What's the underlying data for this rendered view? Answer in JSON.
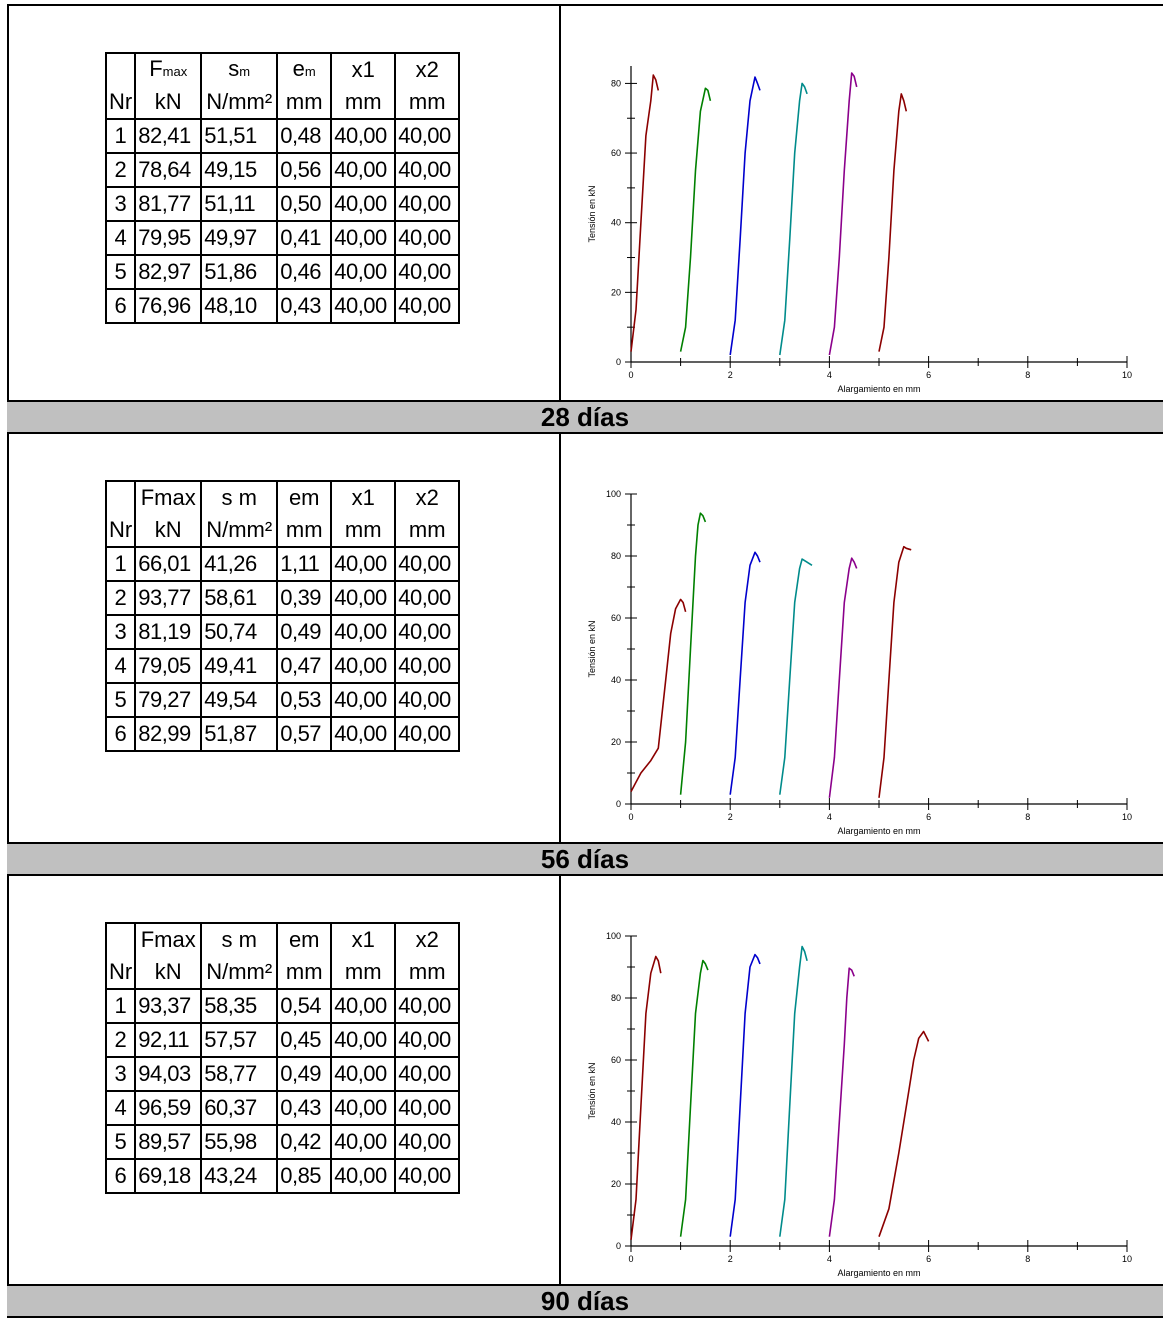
{
  "panels": [
    {
      "caption": "28 días",
      "table": {
        "header_top": [
          "",
          "F",
          "s",
          "e",
          "x1",
          "x2"
        ],
        "header_top_sub": [
          "",
          "max",
          "m",
          "m",
          "",
          ""
        ],
        "header_bottom": [
          "Nr",
          "kN",
          "N/mm²",
          "mm",
          "mm",
          "mm"
        ],
        "rows": [
          [
            "1",
            "82,41",
            "51,51",
            "0,48",
            "40,00",
            "40,00"
          ],
          [
            "2",
            "78,64",
            "49,15",
            "0,56",
            "40,00",
            "40,00"
          ],
          [
            "3",
            "81,77",
            "51,11",
            "0,50",
            "40,00",
            "40,00"
          ],
          [
            "4",
            "79,95",
            "49,97",
            "0,41",
            "40,00",
            "40,00"
          ],
          [
            "5",
            "82,97",
            "51,86",
            "0,46",
            "40,00",
            "40,00"
          ],
          [
            "6",
            "76,96",
            "48,10",
            "0,43",
            "40,00",
            "40,00"
          ]
        ]
      }
    },
    {
      "caption": "56 días",
      "table": {
        "header_top": [
          "",
          "Fmax",
          "s m",
          "em",
          "x1",
          "x2"
        ],
        "header_top_sub": [
          "",
          "",
          "",
          "",
          "",
          ""
        ],
        "header_bottom": [
          "Nr",
          "kN",
          "N/mm²",
          "mm",
          "mm",
          "mm"
        ],
        "rows": [
          [
            "1",
            "66,01",
            "41,26",
            "1,11",
            "40,00",
            "40,00"
          ],
          [
            "2",
            "93,77",
            "58,61",
            "0,39",
            "40,00",
            "40,00"
          ],
          [
            "3",
            "81,19",
            "50,74",
            "0,49",
            "40,00",
            "40,00"
          ],
          [
            "4",
            "79,05",
            "49,41",
            "0,47",
            "40,00",
            "40,00"
          ],
          [
            "5",
            "79,27",
            "49,54",
            "0,53",
            "40,00",
            "40,00"
          ],
          [
            "6",
            "82,99",
            "51,87",
            "0,57",
            "40,00",
            "40,00"
          ]
        ]
      }
    },
    {
      "caption": "90 días",
      "table": {
        "header_top": [
          "",
          "Fmax",
          "s m",
          "em",
          "x1",
          "x2"
        ],
        "header_top_sub": [
          "",
          "",
          "",
          "",
          "",
          ""
        ],
        "header_bottom": [
          "Nr",
          "kN",
          "N/mm²",
          "mm",
          "mm",
          "mm"
        ],
        "rows": [
          [
            "1",
            "93,37",
            "58,35",
            "0,54",
            "40,00",
            "40,00"
          ],
          [
            "2",
            "92,11",
            "57,57",
            "0,45",
            "40,00",
            "40,00"
          ],
          [
            "3",
            "94,03",
            "58,77",
            "0,49",
            "40,00",
            "40,00"
          ],
          [
            "4",
            "96,59",
            "60,37",
            "0,43",
            "40,00",
            "40,00"
          ],
          [
            "5",
            "89,57",
            "55,98",
            "0,42",
            "40,00",
            "40,00"
          ],
          [
            "6",
            "69,18",
            "43,24",
            "0,85",
            "40,00",
            "40,00"
          ]
        ]
      }
    }
  ],
  "chart_data": [
    {
      "type": "line",
      "title": "",
      "xlabel": "Alargamiento en mm",
      "ylabel": "Tensión en kN",
      "xlim": [
        0,
        10
      ],
      "ylim": [
        0,
        85
      ],
      "xticks": [
        0,
        2,
        4,
        6,
        8,
        10
      ],
      "yticks": [
        0,
        20,
        40,
        60,
        80
      ],
      "grid": false,
      "colors": [
        "#8b0000",
        "#008000",
        "#0000cd",
        "#008b8b",
        "#8b008b",
        "#8b0000"
      ],
      "series": [
        {
          "x": [
            0,
            0.1,
            0.2,
            0.3,
            0.4,
            0.45,
            0.5,
            0.55
          ],
          "y": [
            3,
            15,
            40,
            65,
            75,
            82.4,
            81,
            78
          ]
        },
        {
          "x": [
            1,
            1.1,
            1.2,
            1.3,
            1.4,
            1.5,
            1.55,
            1.6
          ],
          "y": [
            3,
            10,
            30,
            55,
            72,
            78.6,
            78,
            75
          ]
        },
        {
          "x": [
            2,
            2.1,
            2.2,
            2.3,
            2.4,
            2.5,
            2.55,
            2.6
          ],
          "y": [
            2,
            12,
            35,
            60,
            75,
            81.8,
            80,
            78
          ]
        },
        {
          "x": [
            3,
            3.1,
            3.2,
            3.3,
            3.4,
            3.45,
            3.5,
            3.55
          ],
          "y": [
            2,
            12,
            35,
            60,
            75,
            80,
            79,
            77
          ]
        },
        {
          "x": [
            4,
            4.1,
            4.2,
            4.3,
            4.4,
            4.45,
            4.5,
            4.55
          ],
          "y": [
            2,
            10,
            30,
            55,
            75,
            83,
            82,
            79
          ]
        },
        {
          "x": [
            5,
            5.1,
            5.2,
            5.3,
            5.4,
            5.45,
            5.5,
            5.55
          ],
          "y": [
            3,
            10,
            30,
            55,
            72,
            77,
            75,
            72
          ]
        }
      ]
    },
    {
      "type": "line",
      "title": "",
      "xlabel": "Alargamiento en mm",
      "ylabel": "Tensión en kN",
      "xlim": [
        0,
        10
      ],
      "ylim": [
        0,
        100
      ],
      "xticks": [
        0,
        2,
        4,
        6,
        8,
        10
      ],
      "yticks": [
        0,
        20,
        40,
        60,
        80,
        100
      ],
      "grid": false,
      "colors": [
        "#8b0000",
        "#008000",
        "#0000cd",
        "#008b8b",
        "#8b008b",
        "#8b0000"
      ],
      "series": [
        {
          "x": [
            0,
            0.2,
            0.4,
            0.55,
            0.7,
            0.8,
            0.9,
            1.0,
            1.05,
            1.1
          ],
          "y": [
            4,
            10,
            14,
            18,
            40,
            55,
            63,
            66,
            65,
            62
          ]
        },
        {
          "x": [
            1,
            1.1,
            1.2,
            1.3,
            1.35,
            1.4,
            1.45,
            1.5
          ],
          "y": [
            3,
            20,
            50,
            80,
            90,
            93.8,
            93,
            91
          ]
        },
        {
          "x": [
            2,
            2.1,
            2.2,
            2.3,
            2.4,
            2.5,
            2.55,
            2.6
          ],
          "y": [
            3,
            15,
            40,
            65,
            77,
            81.2,
            80,
            78
          ]
        },
        {
          "x": [
            3,
            3.1,
            3.2,
            3.3,
            3.4,
            3.45,
            3.55,
            3.65
          ],
          "y": [
            3,
            15,
            40,
            65,
            76,
            79,
            78,
            77
          ]
        },
        {
          "x": [
            4,
            4.1,
            4.2,
            4.3,
            4.4,
            4.45,
            4.5,
            4.55
          ],
          "y": [
            2,
            15,
            40,
            65,
            76,
            79.3,
            78,
            76
          ]
        },
        {
          "x": [
            5,
            5.1,
            5.2,
            5.3,
            5.4,
            5.5,
            5.55,
            5.65
          ],
          "y": [
            2,
            15,
            40,
            65,
            78,
            83,
            82.5,
            82
          ]
        }
      ]
    },
    {
      "type": "line",
      "title": "",
      "xlabel": "Alargamiento en mm",
      "ylabel": "Tensión en kN",
      "xlim": [
        0,
        10
      ],
      "ylim": [
        0,
        100
      ],
      "xticks": [
        0,
        2,
        4,
        6,
        8,
        10
      ],
      "yticks": [
        0,
        20,
        40,
        60,
        80,
        100
      ],
      "grid": false,
      "colors": [
        "#8b0000",
        "#008000",
        "#0000cd",
        "#008b8b",
        "#8b008b",
        "#8b0000"
      ],
      "series": [
        {
          "x": [
            0,
            0.1,
            0.2,
            0.3,
            0.4,
            0.5,
            0.55,
            0.6
          ],
          "y": [
            2,
            15,
            45,
            75,
            88,
            93.4,
            92,
            88
          ]
        },
        {
          "x": [
            1,
            1.1,
            1.2,
            1.3,
            1.4,
            1.45,
            1.5,
            1.55
          ],
          "y": [
            3,
            15,
            45,
            75,
            88,
            92.1,
            91,
            89
          ]
        },
        {
          "x": [
            2,
            2.1,
            2.2,
            2.3,
            2.4,
            2.5,
            2.55,
            2.6
          ],
          "y": [
            3,
            15,
            45,
            75,
            90,
            94,
            93,
            91
          ]
        },
        {
          "x": [
            3,
            3.1,
            3.2,
            3.3,
            3.4,
            3.45,
            3.5,
            3.55
          ],
          "y": [
            3,
            15,
            45,
            75,
            90,
            96.6,
            95,
            92
          ]
        },
        {
          "x": [
            4,
            4.1,
            4.2,
            4.3,
            4.35,
            4.4,
            4.45,
            4.5
          ],
          "y": [
            3,
            15,
            40,
            65,
            80,
            89.6,
            89,
            87
          ]
        },
        {
          "x": [
            5,
            5.2,
            5.4,
            5.6,
            5.7,
            5.8,
            5.9,
            6.0
          ],
          "y": [
            3,
            12,
            30,
            50,
            60,
            67,
            69.2,
            66
          ]
        }
      ]
    }
  ]
}
